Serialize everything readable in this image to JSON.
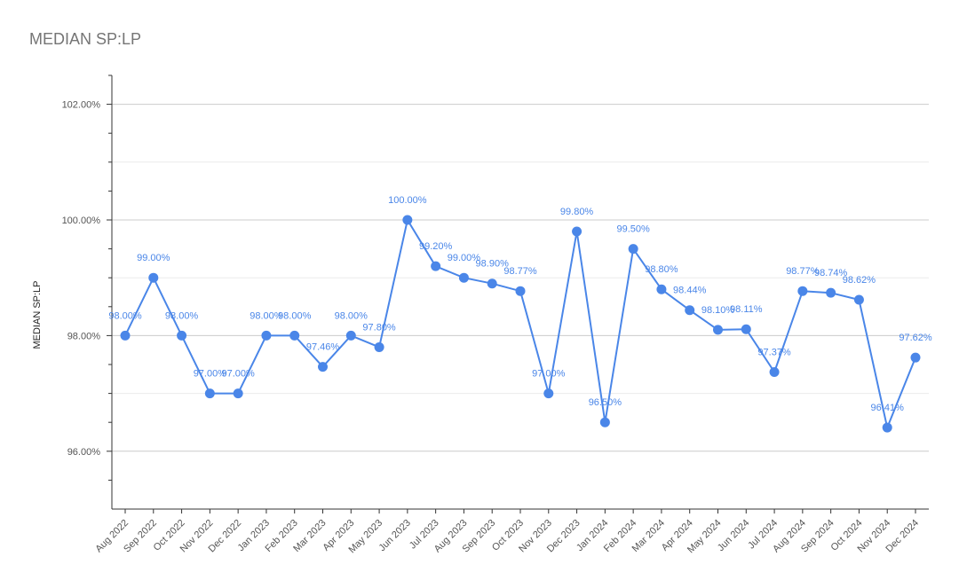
{
  "chart_data": {
    "type": "line",
    "title": "MEDIAN SP:LP",
    "xlabel": "",
    "ylabel": "MEDIAN SP:LP",
    "ylim": [
      95.0,
      102.5
    ],
    "y_ticks": [
      "96.00%",
      "98.00%",
      "100.00%",
      "102.00%"
    ],
    "y_tick_values": [
      96,
      98,
      100,
      102
    ],
    "grid": true,
    "legend": "none",
    "color": "#4a86e8",
    "categories": [
      "Aug 2022",
      "Sep 2022",
      "Oct 2022",
      "Nov 2022",
      "Dec 2022",
      "Jan 2023",
      "Feb 2023",
      "Mar 2023",
      "Apr 2023",
      "May 2023",
      "Jun 2023",
      "Jul 2023",
      "Aug 2023",
      "Sep 2023",
      "Oct 2023",
      "Nov 2023",
      "Dec 2023",
      "Jan 2024",
      "Feb 2024",
      "Mar 2024",
      "Apr 2024",
      "May 2024",
      "Jun 2024",
      "Jul 2024",
      "Aug 2024",
      "Sep 2024",
      "Oct 2024",
      "Nov 2024",
      "Dec 2024"
    ],
    "values": [
      98.0,
      99.0,
      98.0,
      97.0,
      97.0,
      98.0,
      98.0,
      97.46,
      98.0,
      97.8,
      100.0,
      99.2,
      99.0,
      98.9,
      98.77,
      97.0,
      99.8,
      96.5,
      99.5,
      98.8,
      98.44,
      98.1,
      98.11,
      97.37,
      98.77,
      98.74,
      98.62,
      96.41,
      97.62
    ],
    "data_labels": [
      "98.00%",
      "99.00%",
      "98.00%",
      "97.00%",
      "97.00%",
      "98.00%",
      "98.00%",
      "97.46%",
      "98.00%",
      "97.80%",
      "100.00%",
      "99.20%",
      "99.00%",
      "98.90%",
      "98.77%",
      "97.00%",
      "99.80%",
      "96.50%",
      "99.50%",
      "98.80%",
      "98.44%",
      "98.10%",
      "98.11%",
      "97.37%",
      "98.77%",
      "98.74%",
      "98.62%",
      "96.41%",
      "97.62%"
    ]
  }
}
